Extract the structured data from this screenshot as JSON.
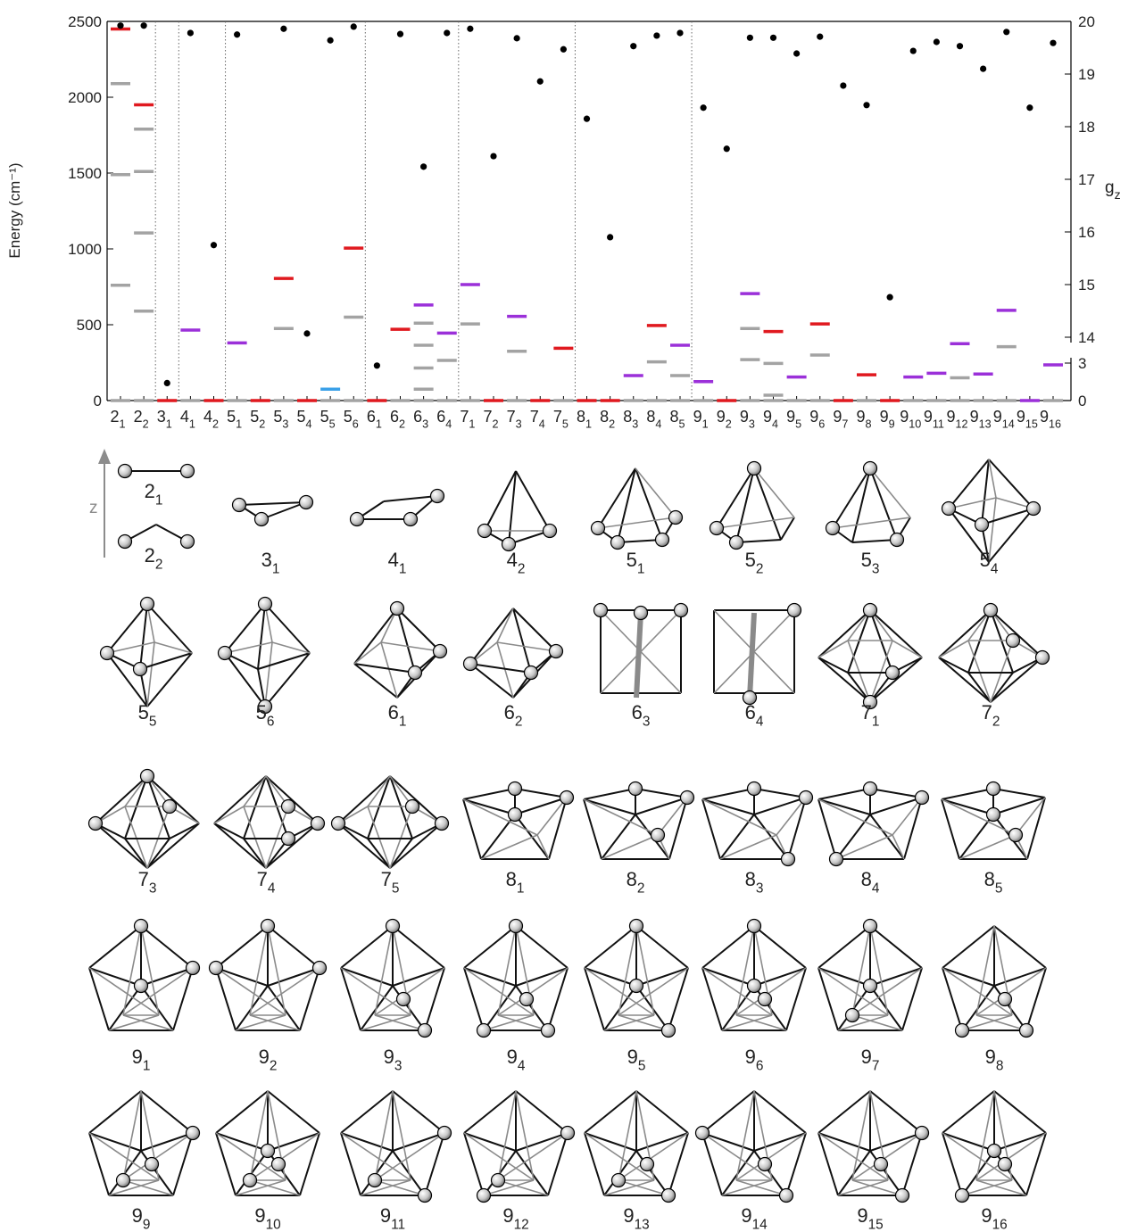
{
  "chart_data": {
    "type": "level",
    "ylabel": "Energy (cm⁻¹)",
    "y2label": "g",
    "y2label_sub": "z",
    "categories": [
      "2",
      "2",
      "3",
      "4",
      "4",
      "5",
      "5",
      "5",
      "5",
      "5",
      "5",
      "6",
      "6",
      "6",
      "6",
      "7",
      "7",
      "7",
      "7",
      "7",
      "8",
      "8",
      "8",
      "8",
      "8",
      "9",
      "9",
      "9",
      "9",
      "9",
      "9",
      "9",
      "9",
      "9",
      "9",
      "9",
      "9",
      "9",
      "9",
      "9",
      "9"
    ],
    "category_subscripts": [
      "1",
      "2",
      "1",
      "1",
      "2",
      "1",
      "2",
      "3",
      "4",
      "5",
      "6",
      "1",
      "2",
      "3",
      "4",
      "1",
      "2",
      "3",
      "4",
      "5",
      "1",
      "2",
      "3",
      "4",
      "5",
      "1",
      "2",
      "3",
      "4",
      "5",
      "6",
      "7",
      "8",
      "9",
      "10",
      "11",
      "12",
      "13",
      "14",
      "15",
      "16"
    ],
    "palette": [
      "#a3a3a3",
      "#e0191f",
      "#9b30d9",
      "#3aa0e8"
    ],
    "levels": [
      [
        0,
        760,
        1490,
        2090,
        2450
      ],
      [
        0,
        590,
        1105,
        1510,
        1790,
        1950
      ],
      [
        0
      ],
      [
        0,
        465
      ],
      [
        0
      ],
      [
        0,
        380
      ],
      [
        0
      ],
      [
        0,
        475,
        805
      ],
      [
        0
      ],
      [
        0,
        75
      ],
      [
        0,
        550,
        1005
      ],
      [
        0
      ],
      [
        0,
        470
      ],
      [
        0,
        75,
        215,
        365,
        510,
        630
      ],
      [
        0,
        265,
        445
      ],
      [
        0,
        505,
        765
      ],
      [
        0
      ],
      [
        0,
        325,
        555
      ],
      [
        0
      ],
      [
        0,
        345
      ],
      [
        0
      ],
      [
        0
      ],
      [
        0,
        165
      ],
      [
        0,
        255,
        495
      ],
      [
        0,
        165,
        365
      ],
      [
        0,
        125
      ],
      [
        0
      ],
      [
        0,
        270,
        475,
        705
      ],
      [
        0,
        35,
        245,
        455
      ],
      [
        0,
        155
      ],
      [
        0,
        300,
        505
      ],
      [
        0
      ],
      [
        0,
        170
      ],
      [
        0
      ],
      [
        0,
        155
      ],
      [
        0,
        180
      ],
      [
        0,
        150,
        375
      ],
      [
        0,
        175
      ],
      [
        0,
        355,
        595
      ],
      [
        0
      ],
      [
        0,
        235
      ]
    ],
    "level_colors": [
      [
        0,
        0,
        0,
        0,
        1
      ],
      [
        0,
        0,
        0,
        0,
        0,
        1
      ],
      [
        1
      ],
      [
        0,
        2
      ],
      [
        1
      ],
      [
        0,
        2
      ],
      [
        1
      ],
      [
        0,
        0,
        1
      ],
      [
        1
      ],
      [
        0,
        3
      ],
      [
        0,
        0,
        1
      ],
      [
        1
      ],
      [
        0,
        1
      ],
      [
        0,
        0,
        0,
        0,
        0,
        2
      ],
      [
        0,
        0,
        2
      ],
      [
        0,
        0,
        2
      ],
      [
        1
      ],
      [
        0,
        0,
        2
      ],
      [
        1
      ],
      [
        0,
        1
      ],
      [
        1
      ],
      [
        1
      ],
      [
        0,
        2
      ],
      [
        0,
        0,
        1
      ],
      [
        0,
        0,
        2
      ],
      [
        0,
        2
      ],
      [
        1
      ],
      [
        0,
        0,
        0,
        2
      ],
      [
        0,
        0,
        0,
        1
      ],
      [
        0,
        2
      ],
      [
        0,
        0,
        1
      ],
      [
        1
      ],
      [
        0,
        1
      ],
      [
        1
      ],
      [
        0,
        2
      ],
      [
        0,
        2
      ],
      [
        0,
        0,
        2
      ],
      [
        0,
        2
      ],
      [
        0,
        0,
        2
      ],
      [
        2
      ],
      [
        0,
        2
      ]
    ],
    "gz": [
      19.92,
      19.92,
      1.4,
      19.78,
      15.75,
      19.75,
      null,
      19.86,
      14.07,
      19.64,
      19.9,
      2.8,
      19.76,
      17.24,
      19.78,
      19.86,
      17.44,
      19.68,
      18.86,
      19.47,
      18.15,
      15.9,
      19.53,
      19.73,
      19.78,
      18.36,
      17.58,
      19.69,
      19.69,
      19.39,
      19.71,
      18.78,
      18.41,
      14.76,
      19.44,
      19.61,
      19.53,
      19.1,
      19.8,
      18.36,
      19.59
    ],
    "gz_color": "#000000",
    "ylim": [
      0,
      2500
    ],
    "yticks": [
      0,
      500,
      1000,
      1500,
      2000,
      2500
    ],
    "y2lim": [
      0,
      20
    ],
    "y2break": [
      3,
      14
    ],
    "y2ticks": [
      0,
      3,
      14,
      15,
      16,
      17,
      18,
      19,
      20
    ]
  },
  "diagrams": {
    "axis_label": "z"
  }
}
